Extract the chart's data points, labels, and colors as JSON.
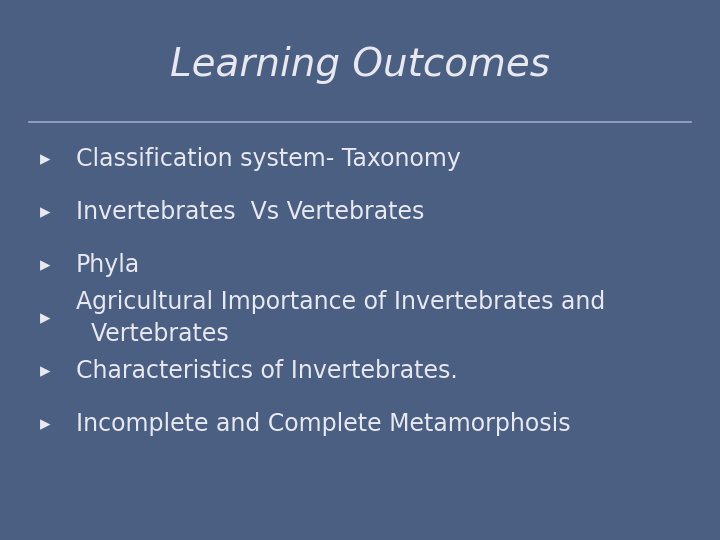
{
  "title": "Learning Outcomes",
  "title_fontsize": 28,
  "title_color": "#e8e8f0",
  "title_font": "Georgia",
  "bullet_items": [
    "Classification system- Taxonomy",
    "Invertebrates  Vs Vertebrates",
    "Phyla",
    "Agricultural Importance of Invertebrates and\n  Vertebrates",
    "Characteristics of Invertebrates.",
    "Incomplete and Complete Metamorphosis"
  ],
  "bullet_fontsize": 17,
  "bullet_color": "#e8e8f0",
  "bullet_marker": "▸",
  "bg_color_outer": "#6b7fa3",
  "bg_color_inner": "#4a5f82",
  "line_color": "#9aaac8"
}
